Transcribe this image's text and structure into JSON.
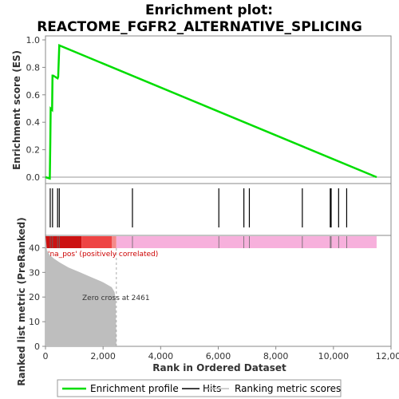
{
  "chart_data": {
    "type": "line",
    "title_line1": "Enrichment plot:",
    "title_line2": "REACTOME_FGFR2_ALTERNATIVE_SPLICING",
    "xlabel": "Rank in Ordered Dataset",
    "ylabel_top": "Enrichment score (ES)",
    "ylabel_bottom": "Ranked list metric (PreRanked)",
    "xlim": [
      0,
      12000
    ],
    "x_ticks": [
      0,
      2000,
      4000,
      6000,
      8000,
      10000,
      12000
    ],
    "x_tick_labels": [
      "0",
      "2,000",
      "4,000",
      "6,000",
      "8,000",
      "10,000",
      "12,000"
    ],
    "es_ylim": [
      -0.05,
      1.0
    ],
    "es_ticks": [
      0.0,
      0.2,
      0.4,
      0.6,
      0.8,
      1.0
    ],
    "es_tick_labels": [
      "0.0",
      "0.2",
      "0.4",
      "0.6",
      "0.8",
      "1.0"
    ],
    "metric_ylim": [
      0,
      45
    ],
    "metric_ticks": [
      0,
      10,
      20,
      30,
      40
    ],
    "metric_tick_labels": [
      "0",
      "10",
      "20",
      "30",
      "40"
    ],
    "total_ranks": 11500,
    "series": [
      {
        "name": "Enrichment profile",
        "color": "#00dd00",
        "x": [
          0,
          150,
          165,
          180,
          230,
          245,
          265,
          420,
          440,
          480,
          11500
        ],
        "y": [
          0.0,
          -0.01,
          0.24,
          0.5,
          0.49,
          0.74,
          0.74,
          0.72,
          0.73,
          0.96,
          0.0
        ]
      }
    ],
    "hits": [
      165,
      245,
      420,
      480,
      3020,
      6020,
      6890,
      7080,
      8920,
      9890,
      9920,
      10180,
      10460
    ],
    "metric_curve": {
      "x": [
        0,
        50,
        150,
        300,
        500,
        800,
        1200,
        1600,
        2000,
        2300,
        2400,
        2440,
        2461
      ],
      "y": [
        45,
        39,
        37,
        35.5,
        34,
        32,
        30,
        28,
        26,
        24,
        22,
        19,
        0
      ]
    },
    "zero_cross_rank": 2461,
    "annotations": {
      "positive_label": "'na_pos' (positively correlated)",
      "zero_cross": "Zero cross at 2461"
    },
    "colorbar_segments": [
      {
        "from": 0,
        "to": 1250,
        "color": "#cc1111"
      },
      {
        "from": 1250,
        "to": 2300,
        "color": "#ee4444"
      },
      {
        "from": 2300,
        "to": 2461,
        "color": "#f58a8a"
      },
      {
        "from": 2461,
        "to": 11500,
        "color": "#f7b0dc"
      }
    ],
    "legend": {
      "items": [
        {
          "label": "Enrichment profile",
          "color": "#00dd00"
        },
        {
          "label": "Hits",
          "color": "#000000"
        },
        {
          "label": "Ranking metric scores",
          "color": "#c0c0c0"
        }
      ],
      "placement": "bottom"
    },
    "colors": {
      "metric_fill": "#bebebe",
      "positive_label": "#cc0000",
      "frame": "#888888"
    }
  }
}
